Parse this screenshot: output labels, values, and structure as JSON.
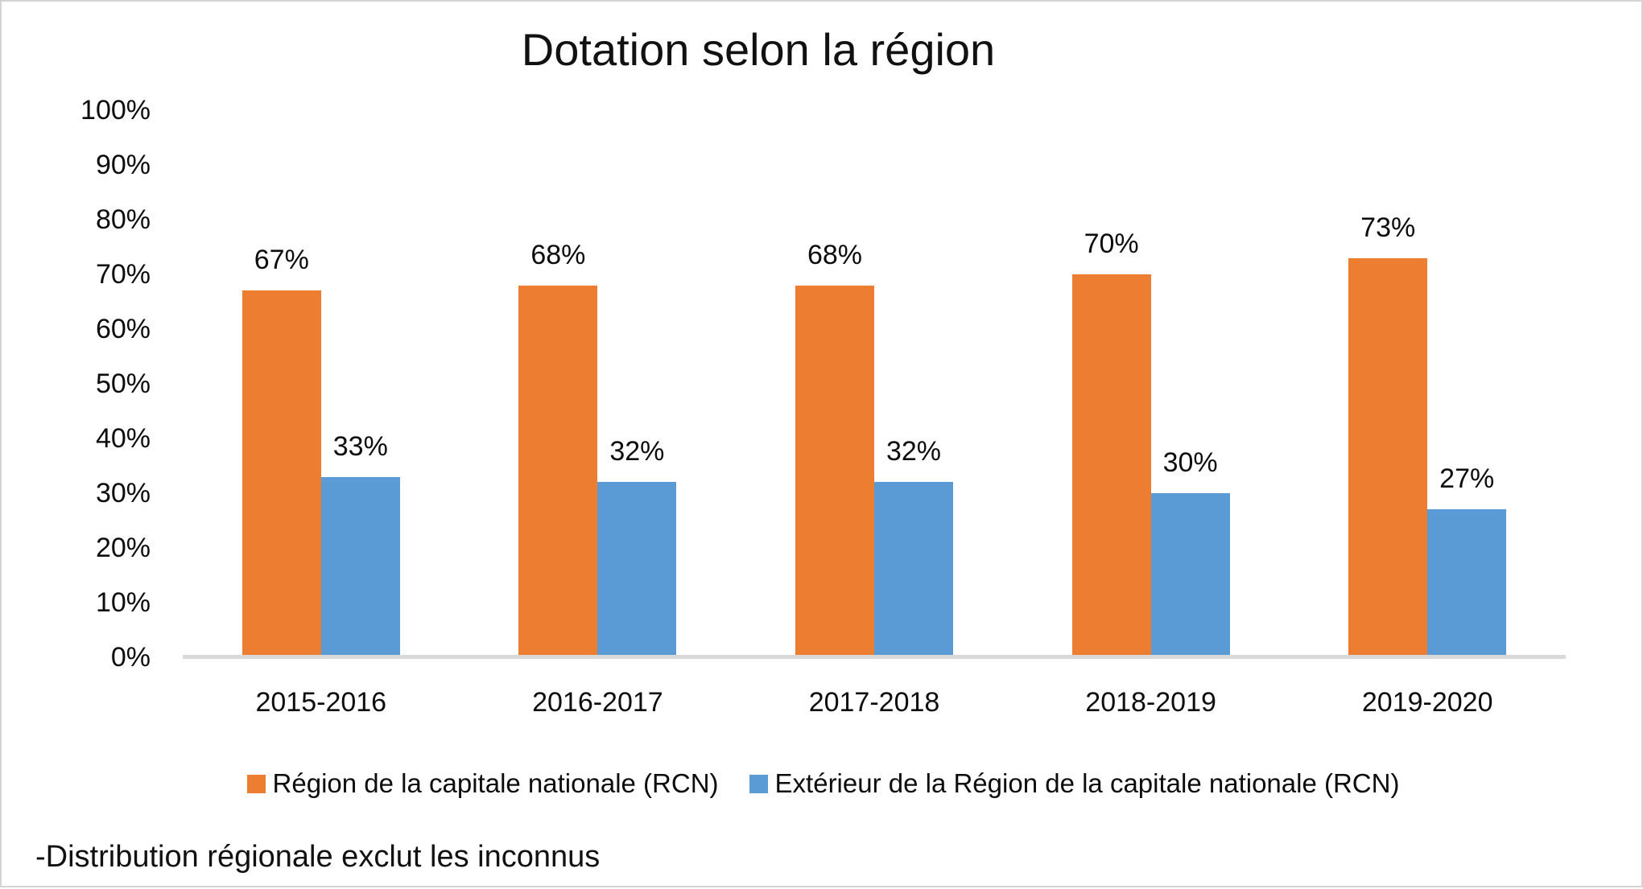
{
  "chart_data": {
    "type": "bar",
    "title": "Dotation selon la région",
    "categories": [
      "2015-2016",
      "2016-2017",
      "2017-2018",
      "2018-2019",
      "2019-2020"
    ],
    "series": [
      {
        "name": "Région de la capitale nationale (RCN)",
        "color": "#ED7D31",
        "values": [
          67,
          68,
          68,
          70,
          73
        ]
      },
      {
        "name": "Extérieur de la Région de la capitale nationale (RCN)",
        "color": "#5B9BD5",
        "values": [
          33,
          32,
          32,
          30,
          27
        ]
      }
    ],
    "y_ticks": [
      "100%",
      "90%",
      "80%",
      "70%",
      "60%",
      "50%",
      "40%",
      "30%",
      "20%",
      "10%",
      "0%"
    ],
    "ylim": [
      0,
      100
    ],
    "data_label_format": "{v}%",
    "grid": false,
    "legend_position": "bottom",
    "axis_line_color": "#D9D9D9"
  },
  "footnote": "-Distribution régionale exclut les inconnus"
}
